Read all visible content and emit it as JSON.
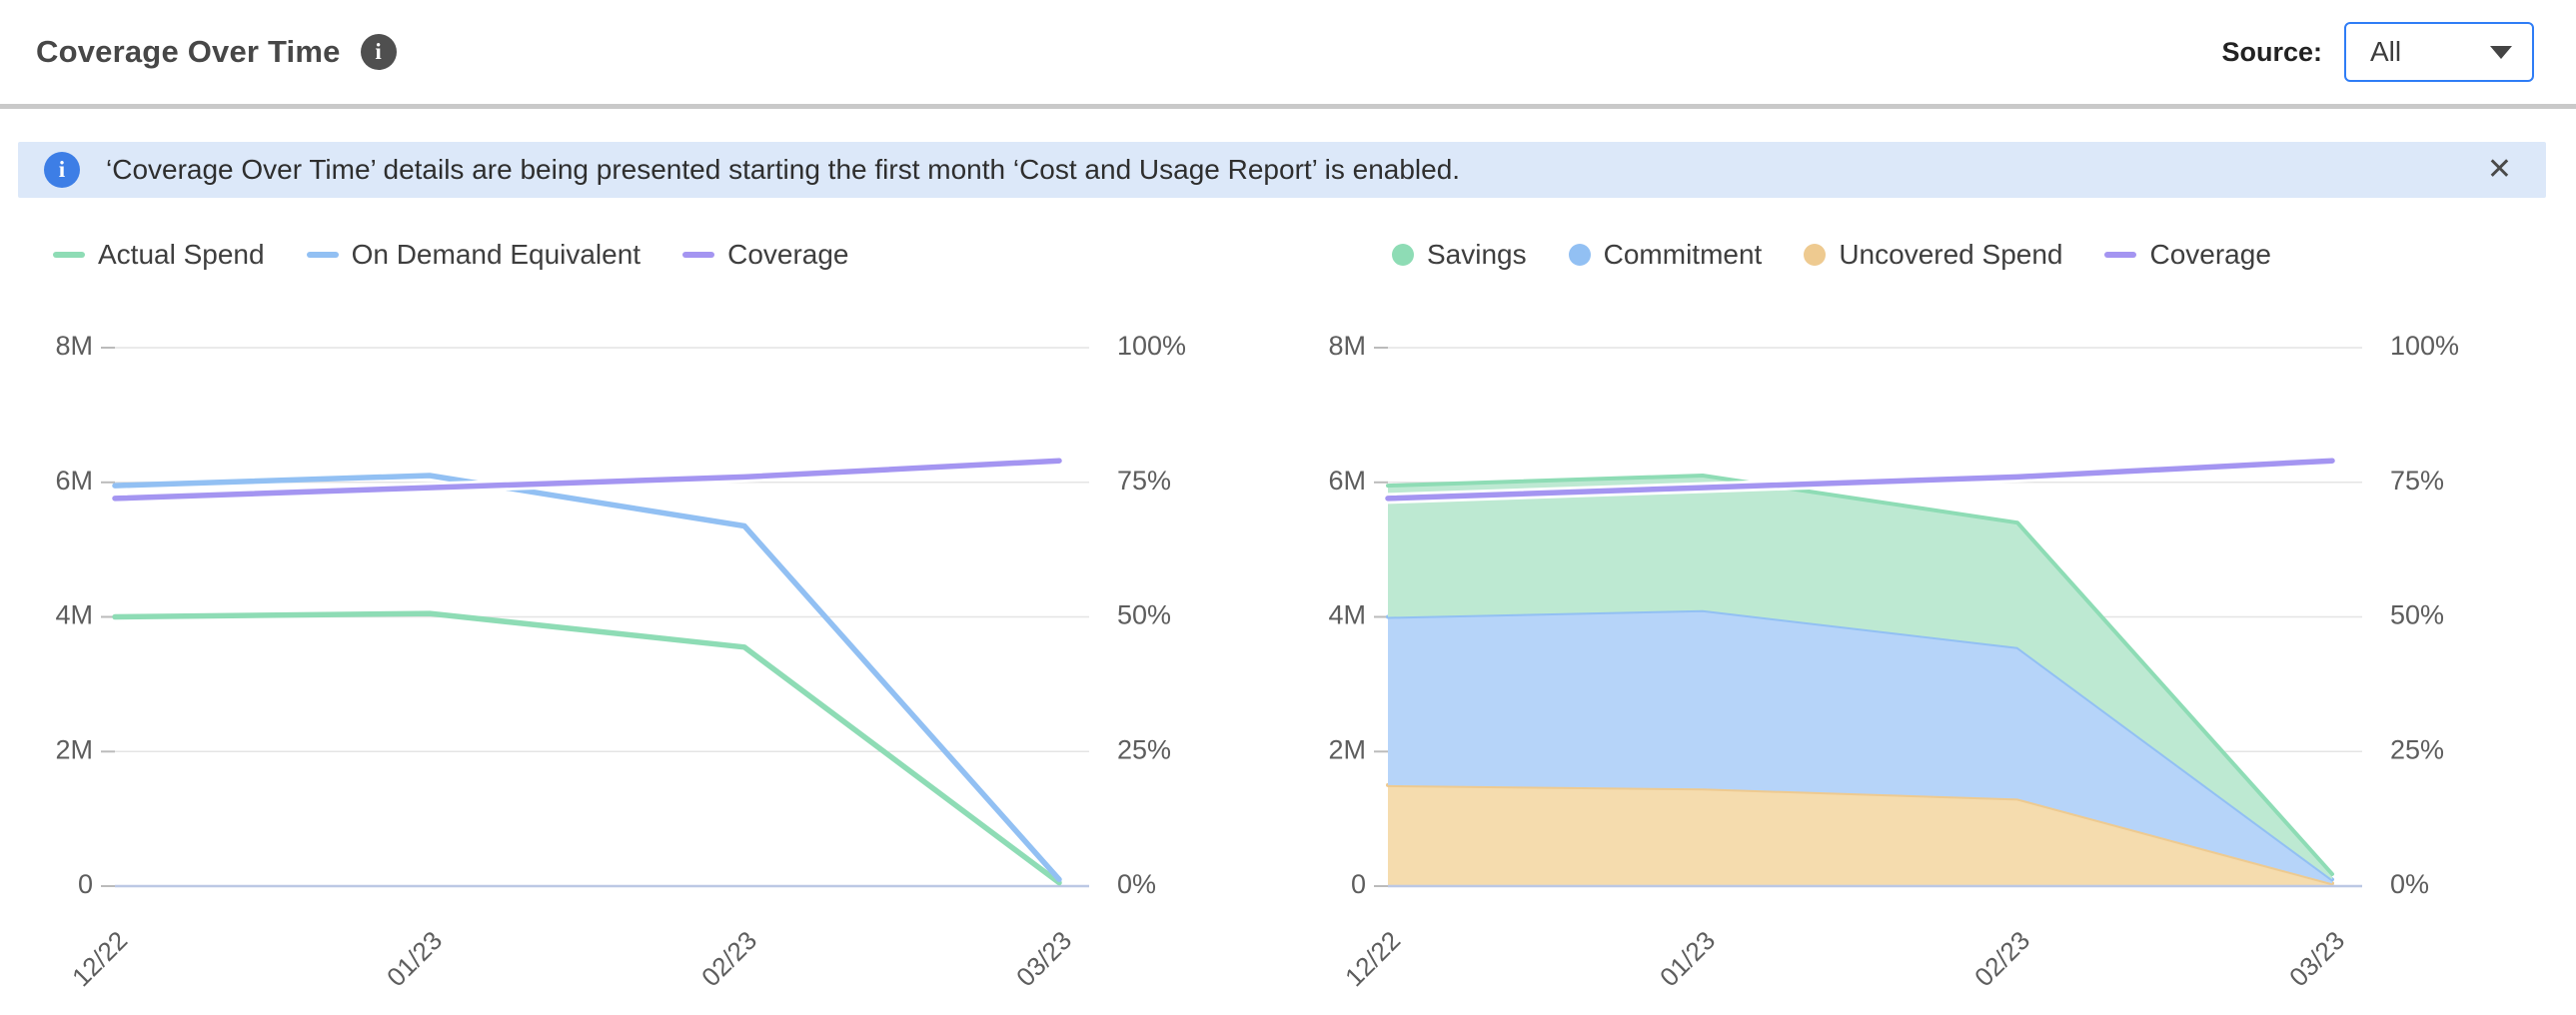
{
  "header": {
    "title": "Coverage Over Time",
    "info_glyph": "i",
    "source_label": "Source:",
    "source_value": "All"
  },
  "banner": {
    "icon_glyph": "i",
    "text": "‘Coverage Over Time’ details are being presented starting the first month ‘Cost and Usage Report’ is enabled.",
    "close_glyph": "✕"
  },
  "theme": {
    "accent_blue": "#2f7df6",
    "banner_bg": "#dce8f9",
    "banner_icon_blue": "#3d7ee6",
    "title_color": "#474747",
    "body_text": "#2e2e2e",
    "axis_text": "#5d5d5d",
    "grid_line": "#e4e4e4",
    "zero_line": "#bcc8e4",
    "divider": "#c9c9c9"
  },
  "chart_data": [
    {
      "type": "line",
      "name": "spend-vs-on-demand",
      "categories": [
        "12/22",
        "01/23",
        "02/23",
        "03/23"
      ],
      "series": [
        {
          "name": "Actual Spend",
          "kind": "line",
          "axis": "left",
          "color": "#8edcb5",
          "values_millions": [
            4.0,
            4.05,
            3.55,
            0.05
          ]
        },
        {
          "name": "On Demand Equivalent",
          "kind": "line",
          "axis": "left",
          "color": "#92c0f3",
          "values_millions": [
            5.95,
            6.1,
            5.35,
            0.1
          ]
        },
        {
          "name": "Coverage",
          "kind": "line",
          "axis": "right",
          "color": "#a495f1",
          "values_percent": [
            72,
            74,
            76,
            79
          ]
        }
      ],
      "left_axis": {
        "min": 0,
        "max_millions": 8,
        "tick_labels": [
          "0",
          "2M",
          "4M",
          "6M",
          "8M"
        ]
      },
      "right_axis": {
        "min": 0,
        "max": 100,
        "tick_labels": [
          "0%",
          "25%",
          "50%",
          "75%",
          "100%"
        ]
      },
      "grid": true,
      "legend_position": "top-left"
    },
    {
      "type": "area",
      "name": "coverage-breakdown",
      "categories": [
        "12/22",
        "01/23",
        "02/23",
        "03/23"
      ],
      "series": [
        {
          "name": "Savings",
          "kind": "area",
          "stack_level": 2,
          "color": "#8edcb5",
          "fill": "#bde9d2",
          "values_millions": [
            1.95,
            2.0,
            1.85,
            0.08
          ]
        },
        {
          "name": "Commitment",
          "kind": "area",
          "stack_level": 1,
          "color": "#92c0f3",
          "fill": "#b6d4f9",
          "values_millions": [
            2.5,
            2.65,
            2.25,
            0.06
          ]
        },
        {
          "name": "Uncovered Spend",
          "kind": "area",
          "stack_level": 0,
          "color": "#eeca90",
          "fill": "#f5dcae",
          "values_millions": [
            1.5,
            1.45,
            1.3,
            0.04
          ]
        },
        {
          "name": "Coverage",
          "kind": "line",
          "axis": "right",
          "color": "#a495f1",
          "values_percent": [
            72,
            74,
            76,
            79
          ]
        }
      ],
      "left_axis": {
        "min": 0,
        "max_millions": 8,
        "tick_labels": [
          "0",
          "2M",
          "4M",
          "6M",
          "8M"
        ]
      },
      "right_axis": {
        "min": 0,
        "max": 100,
        "tick_labels": [
          "0%",
          "25%",
          "50%",
          "75%",
          "100%"
        ]
      },
      "grid": true,
      "legend_position": "top-left"
    }
  ]
}
